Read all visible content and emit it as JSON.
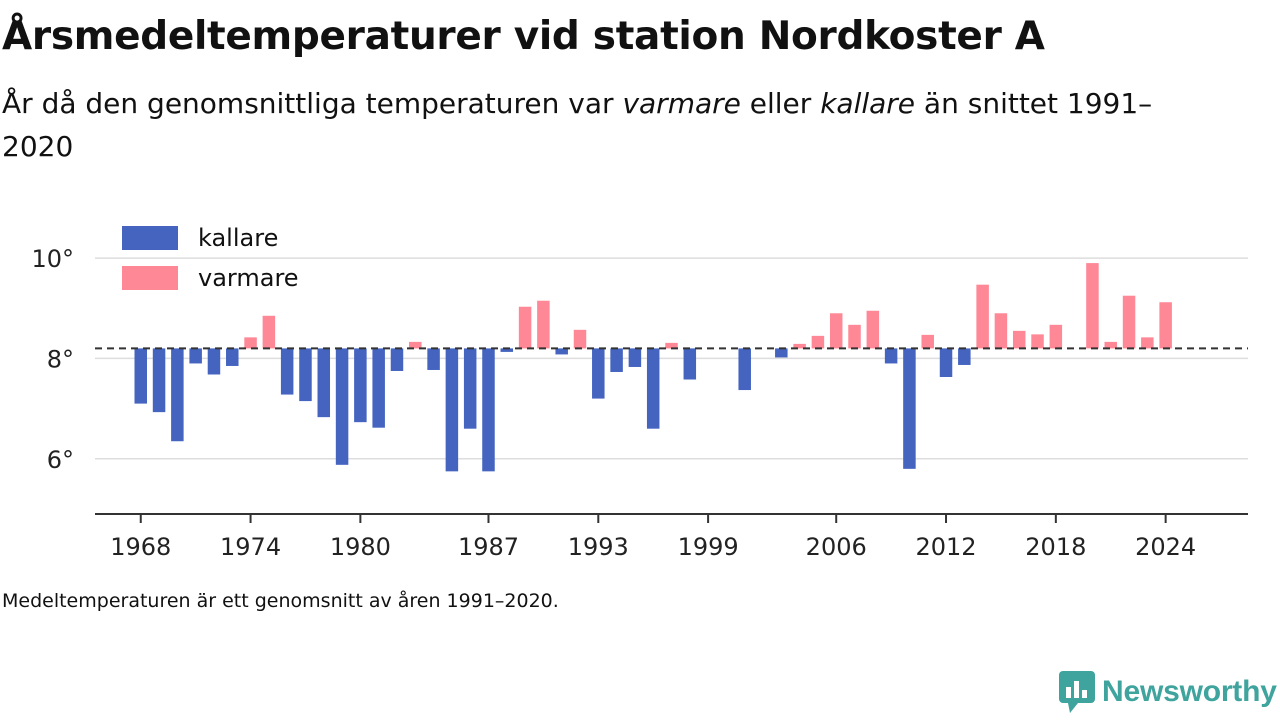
{
  "title": "Årsmedeltemperaturer vid station Nordkoster A",
  "subtitle": {
    "part1": "År då den genomsnittliga temperaturen var ",
    "warm_word": "varmare",
    "part2": " eller ",
    "cold_word": "kallare",
    "part3": " än snittet 1991–2020"
  },
  "note": "Medeltemperaturen är ett genomsnitt av åren 1991–2020.",
  "brand": {
    "name": "Newsworthy",
    "icon": "newsworthy-logo-icon"
  },
  "colors": {
    "cold": "#4464c0",
    "warm": "#ff8896",
    "grid": "#dddddd",
    "axis": "#333333",
    "brand": "#3fa39e"
  },
  "chart_data": {
    "type": "bar",
    "baseline": 8.2,
    "baseline_style": "dashed",
    "ylim": [
      4.9,
      10.4
    ],
    "y_ticks": [
      6,
      8,
      10
    ],
    "y_tick_labels": [
      "6°",
      "8°",
      "10°"
    ],
    "x_range": [
      1965.5,
      2028.5
    ],
    "x_ticks": [
      1968,
      1974,
      1980,
      1987,
      1993,
      1999,
      2006,
      2012,
      2018,
      2024
    ],
    "grid": "horizontal",
    "legend": {
      "position": "top-left",
      "items": [
        {
          "label": "kallare",
          "color_key": "cold"
        },
        {
          "label": "varmare",
          "color_key": "warm"
        }
      ]
    },
    "series": [
      {
        "x": [
          1968,
          1969,
          1970,
          1971,
          1972,
          1973,
          1974,
          1975,
          1976,
          1977,
          1978,
          1979,
          1980,
          1981,
          1982,
          1983,
          1984,
          1985,
          1986,
          1987,
          1988,
          1989,
          1990,
          1991,
          1992,
          1993,
          1994,
          1995,
          1996,
          1997,
          1998,
          2001,
          2003,
          2004,
          2005,
          2006,
          2007,
          2008,
          2009,
          2010,
          2011,
          2012,
          2013,
          2014,
          2015,
          2016,
          2017,
          2018,
          2020,
          2021,
          2022,
          2023,
          2024
        ],
        "values": [
          7.1,
          6.93,
          6.35,
          7.9,
          7.68,
          7.85,
          8.42,
          8.85,
          7.28,
          7.15,
          6.83,
          5.88,
          6.73,
          6.62,
          7.75,
          8.33,
          7.77,
          5.75,
          6.6,
          5.75,
          8.13,
          9.03,
          9.15,
          8.08,
          8.57,
          7.2,
          7.73,
          7.83,
          6.6,
          8.31,
          7.58,
          7.37,
          8.02,
          8.29,
          8.45,
          8.9,
          8.67,
          8.95,
          7.9,
          5.8,
          8.47,
          7.63,
          7.87,
          9.47,
          8.9,
          8.55,
          8.48,
          8.67,
          9.9,
          8.33,
          9.25,
          8.42,
          9.12
        ]
      }
    ]
  }
}
